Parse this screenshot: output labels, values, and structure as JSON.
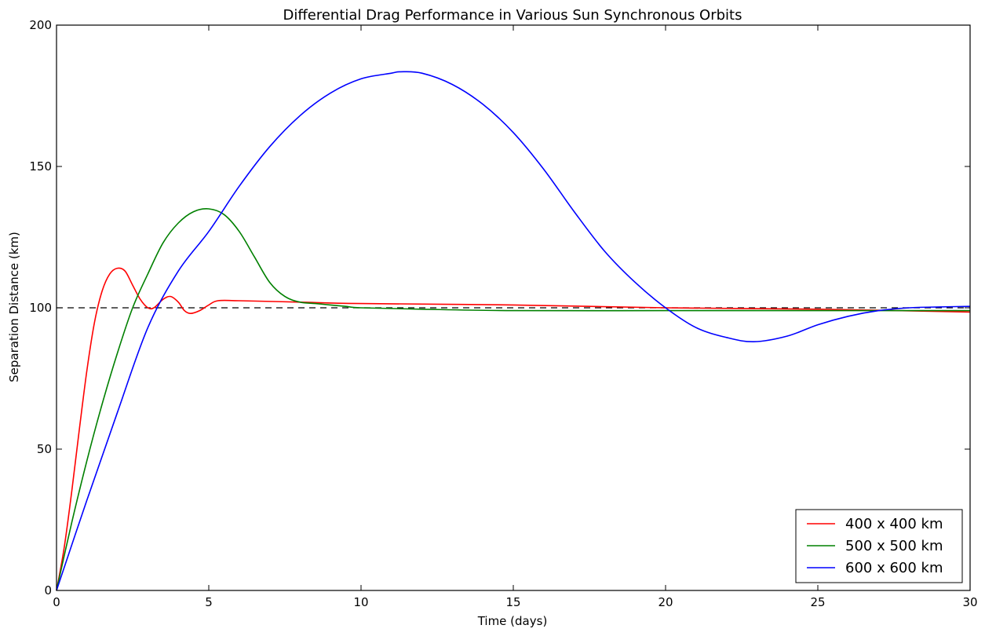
{
  "chart_data": {
    "type": "line",
    "title": "Differential Drag Performance in Various Sun Synchronous Orbits",
    "xlabel": "Time (days)",
    "ylabel": "Separation Distance (km)",
    "xlim": [
      0,
      30
    ],
    "ylim": [
      0,
      200
    ],
    "xticks": [
      0,
      5,
      10,
      15,
      20,
      25,
      30
    ],
    "yticks": [
      0,
      50,
      100,
      150,
      200
    ],
    "grid": false,
    "legend_position": "lower-right",
    "reference_line": {
      "y": 100,
      "style": "dashed",
      "color": "#000000"
    },
    "series": [
      {
        "name": "400 x 400 km",
        "color": "#ff0000",
        "x": [
          0,
          0.25,
          0.5,
          0.75,
          1.0,
          1.25,
          1.5,
          1.75,
          2.0,
          2.25,
          2.5,
          2.75,
          3.0,
          3.2,
          3.5,
          3.75,
          4.0,
          4.2,
          4.4,
          4.7,
          5.0,
          5.3,
          6,
          8,
          10,
          15,
          20,
          25,
          30
        ],
        "y": [
          0,
          15,
          35,
          57,
          78,
          95,
          106,
          112,
          114,
          113,
          108,
          103,
          100,
          100,
          103,
          104,
          102,
          99,
          98,
          99,
          101,
          102.5,
          102.5,
          102,
          101.5,
          101,
          100,
          99.5,
          98.5
        ]
      },
      {
        "name": "500 x 500 km",
        "color": "#008000",
        "x": [
          0,
          0.5,
          1.0,
          1.5,
          2.0,
          2.5,
          3.0,
          3.5,
          4.0,
          4.5,
          5.0,
          5.5,
          6.0,
          6.5,
          7.0,
          7.5,
          8.0,
          8.5,
          9.0,
          9.5,
          10,
          12,
          15,
          20,
          25,
          30
        ],
        "y": [
          0,
          24,
          46,
          66,
          84,
          100,
          112,
          123,
          130,
          134,
          135,
          133,
          127,
          118,
          109,
          104,
          102,
          101.5,
          101,
          100.5,
          100,
          99.5,
          99,
          99,
          99,
          99
        ]
      },
      {
        "name": "600 x 600 km",
        "color": "#0000ff",
        "x": [
          0,
          1,
          2,
          3,
          4,
          5,
          6,
          7,
          8,
          9,
          10,
          11,
          11.3,
          12,
          13,
          14,
          15,
          16,
          17,
          18,
          19,
          20,
          21,
          22,
          22.9,
          24,
          25,
          26,
          27,
          28,
          29,
          30
        ],
        "y": [
          0,
          32,
          63,
          93,
          113,
          127,
          143,
          157,
          168,
          176,
          181,
          183,
          183.5,
          183,
          179,
          172,
          162,
          149,
          134,
          120,
          109,
          100,
          93,
          89.5,
          88,
          90,
          94,
          97,
          99,
          100,
          100.3,
          100.5
        ]
      }
    ]
  }
}
